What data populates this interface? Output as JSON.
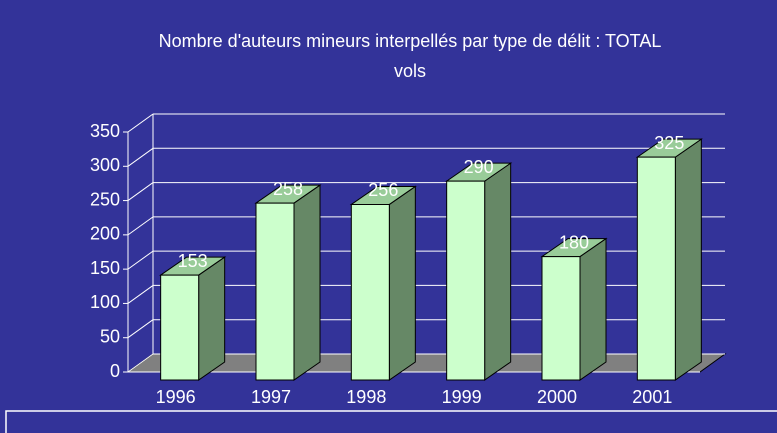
{
  "chart_data": {
    "type": "bar3d",
    "title": "Nombre d'auteurs mineurs interpellés par type de délit : TOTAL",
    "subtitle": "vols",
    "categories": [
      "1996",
      "1997",
      "1998",
      "1999",
      "2000",
      "2001"
    ],
    "values": [
      153,
      258,
      256,
      290,
      180,
      325
    ],
    "color": "#ccffcc",
    "ylim": [
      0,
      350
    ],
    "yticks": [
      0,
      50,
      100,
      150,
      200,
      250,
      300,
      350
    ],
    "grid": true
  }
}
